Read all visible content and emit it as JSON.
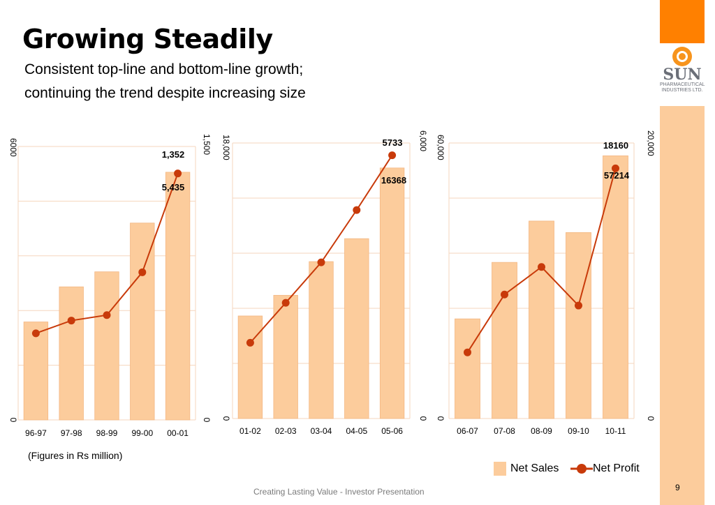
{
  "slide": {
    "title": "Growing Steadily",
    "subtitle_line1": "Consistent top-line and bottom-line growth;",
    "subtitle_line2": "continuing the trend despite increasing size",
    "note": "(Figures in Rs million)",
    "footer": "Creating Lasting Value - Investor Presentation",
    "page_number": "9"
  },
  "logo": {
    "name": "SUN",
    "sub_line1": "PHARMACEUTICAL",
    "sub_line2": "INDUSTRIES LTD."
  },
  "legend": {
    "net_sales": "Net Sales",
    "net_profit": "Net Profit"
  },
  "colors": {
    "bar_fill": "#fccc9c",
    "bar_stroke": "#f3b783",
    "line": "#c83a0a",
    "marker": "#c83a0a",
    "grid": "#f6d6bd",
    "accent_orange": "#ff8000"
  },
  "chart_data": [
    {
      "type": "bar",
      "categories": [
        "96-97",
        "97-98",
        "98-99",
        "99-00",
        "00-01"
      ],
      "series": [
        {
          "name": "Net Sales",
          "type": "bar",
          "axis": "left",
          "values": [
            2150,
            2920,
            3250,
            4320,
            5435
          ]
        },
        {
          "name": "Net Profit",
          "type": "line",
          "axis": "right",
          "values": [
            475,
            545,
            575,
            810,
            1352
          ]
        }
      ],
      "left_axis": {
        "ticks": [
          "0",
          "6000"
        ],
        "range": [
          0,
          6000
        ]
      },
      "right_axis": {
        "ticks": [
          "0",
          "1,500"
        ],
        "range": [
          0,
          1500
        ]
      },
      "data_labels": {
        "profit_last": "1,352",
        "sales_last": "5,435"
      }
    },
    {
      "type": "bar",
      "categories": [
        "01-02",
        "02-03",
        "03-04",
        "04-05",
        "05-06"
      ],
      "series": [
        {
          "name": "Net Sales",
          "type": "bar",
          "axis": "left",
          "values": [
            6700,
            8050,
            10250,
            11750,
            16368
          ]
        },
        {
          "name": "Net Profit",
          "type": "line",
          "axis": "right",
          "values": [
            1650,
            2520,
            3400,
            4540,
            5733
          ]
        }
      ],
      "left_axis": {
        "ticks": [
          "0",
          "18,000"
        ],
        "range": [
          0,
          18000
        ]
      },
      "right_axis": {
        "ticks": [
          "0",
          "6,000"
        ],
        "range": [
          0,
          6000
        ]
      },
      "data_labels": {
        "profit_last": "5733",
        "sales_last": "16368"
      }
    },
    {
      "type": "bar",
      "categories": [
        "06-07",
        "07-08",
        "08-09",
        "09-10",
        "10-11"
      ],
      "series": [
        {
          "name": "Net Sales",
          "type": "bar",
          "axis": "left",
          "values": [
            21700,
            34000,
            43000,
            40500,
            57214
          ]
        },
        {
          "name": "Net Profit",
          "type": "line",
          "axis": "right",
          "values": [
            4800,
            9000,
            11000,
            8200,
            18160
          ]
        }
      ],
      "left_axis": {
        "ticks": [
          "0",
          "60,000"
        ],
        "range": [
          0,
          60000
        ]
      },
      "right_axis": {
        "ticks": [
          "0",
          "20,000"
        ],
        "range": [
          0,
          20000
        ]
      },
      "data_labels": {
        "profit_last": "18160",
        "sales_last": "57214"
      }
    }
  ]
}
